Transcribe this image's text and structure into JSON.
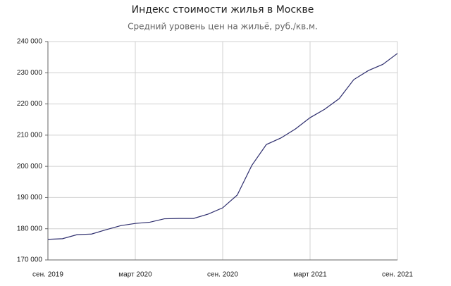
{
  "chart_data": {
    "type": "line",
    "title": "Индекс стоимости жилья в Москве",
    "subtitle": "Средний уровень цен на жильё, руб./кв.м.",
    "categories": [
      "сен. 2019",
      null,
      null,
      null,
      null,
      null,
      "март 2020",
      null,
      null,
      null,
      null,
      null,
      "сен. 2020",
      null,
      null,
      null,
      null,
      null,
      "март 2021",
      null,
      null,
      null,
      null,
      null,
      "сен. 2021"
    ],
    "series": [
      {
        "color": "#2e2e6e",
        "values": [
          176600,
          176800,
          178100,
          178300,
          179700,
          181000,
          181700,
          182100,
          183200,
          183300,
          183300,
          184700,
          186700,
          190800,
          200300,
          207000,
          209100,
          212000,
          215600,
          218300,
          221700,
          227800,
          230700,
          232700,
          236200
        ]
      }
    ],
    "ylim": [
      170000,
      240000
    ],
    "yticks": [
      {
        "value": 170000,
        "label": "170 000"
      },
      {
        "value": 180000,
        "label": "180 000"
      },
      {
        "value": 190000,
        "label": "190 000"
      },
      {
        "value": 200000,
        "label": "200 000"
      },
      {
        "value": 210000,
        "label": "210 000"
      },
      {
        "value": 220000,
        "label": "220 000"
      },
      {
        "value": 230000,
        "label": "230 000"
      },
      {
        "value": 240000,
        "label": "240 000"
      }
    ],
    "grid": true
  }
}
